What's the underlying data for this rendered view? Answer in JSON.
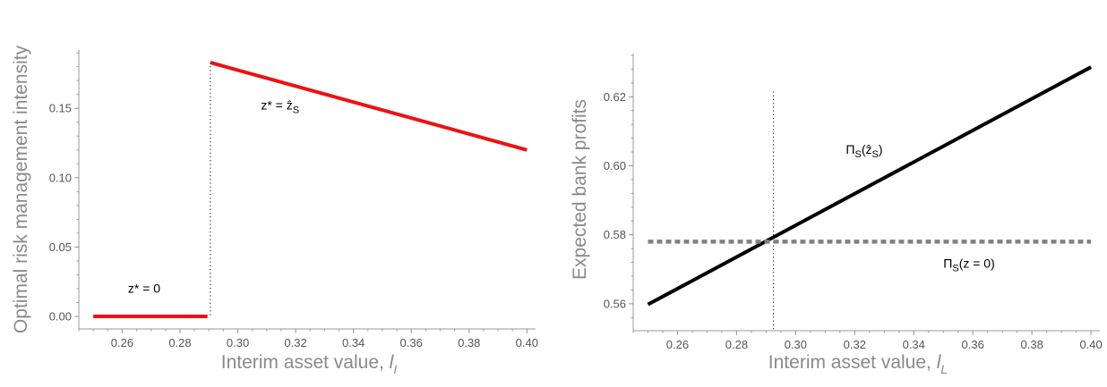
{
  "chart_data": [
    {
      "type": "line",
      "xlabel": "Interim asset value, ",
      "xlabel_var": "l",
      "xlabel_sub": "I",
      "ylabel": "Optimal risk management intensity",
      "xlim": [
        0.245,
        0.403
      ],
      "ylim": [
        -0.009,
        0.192
      ],
      "xticks": [
        0.26,
        0.28,
        0.3,
        0.32,
        0.34,
        0.36,
        0.38,
        0.4
      ],
      "xtick_labels": [
        "0.26",
        "0.28",
        "0.30",
        "0.32",
        "0.34",
        "0.36",
        "0.38",
        "0.40"
      ],
      "yticks": [
        0.0,
        0.05,
        0.1,
        0.15
      ],
      "ytick_labels": [
        "0.00",
        "0.05",
        "0.10",
        "0.15"
      ],
      "grid": false,
      "series": [
        {
          "color": "#ee1111",
          "style": "solid",
          "x": [
            0.25,
            0.2895
          ],
          "y": [
            0.0,
            0.0
          ]
        },
        {
          "color": "#ee1111",
          "style": "solid",
          "x": [
            0.2905,
            0.4
          ],
          "y": [
            0.183,
            0.12
          ]
        }
      ],
      "vlines": [
        {
          "x": 0.2905,
          "y0": 0.0,
          "y1": 0.183,
          "style": "dotted",
          "color": "#000000"
        }
      ],
      "annotations": [
        {
          "text_main": "z* = 0",
          "text_sub": "",
          "x": 0.262,
          "y": 0.017
        },
        {
          "text_main": "z* = ẑ",
          "text_sub": "S",
          "x": 0.308,
          "y": 0.149
        }
      ]
    },
    {
      "type": "line",
      "xlabel": "Interim asset value, ",
      "xlabel_var": "l",
      "xlabel_sub": "L",
      "ylabel": "Expected bank profits",
      "xlim": [
        0.245,
        0.403
      ],
      "ylim": [
        0.5522,
        0.6325
      ],
      "xticks": [
        0.26,
        0.28,
        0.3,
        0.32,
        0.34,
        0.36,
        0.38,
        0.4
      ],
      "xtick_labels": [
        "0.26",
        "0.28",
        "0.30",
        "0.32",
        "0.34",
        "0.36",
        "0.38",
        "0.40"
      ],
      "yticks": [
        0.56,
        0.58,
        0.6,
        0.62
      ],
      "ytick_labels": [
        "0.56",
        "0.58",
        "0.60",
        "0.62"
      ],
      "grid": false,
      "series": [
        {
          "color": "#000000",
          "style": "solid",
          "x": [
            0.25,
            0.4
          ],
          "y": [
            0.5598,
            0.6286
          ]
        },
        {
          "color": "#808080",
          "style": "dashed",
          "x": [
            0.25,
            0.4
          ],
          "y": [
            0.578,
            0.578
          ]
        }
      ],
      "vlines": [
        {
          "x": 0.2925,
          "y0": 0.5522,
          "y1": 0.6215,
          "style": "dotted",
          "color": "#000000"
        }
      ],
      "annotations": [
        {
          "text_main": "Π",
          "text_sub": "S",
          "text_rest": "(ẑ",
          "text_sub2": "S",
          "text_end": ")",
          "x": 0.317,
          "y": 0.6035
        },
        {
          "text_main": "Π",
          "text_sub": "S",
          "text_rest": "(z = 0)",
          "text_sub2": "",
          "text_end": "",
          "x": 0.35,
          "y": 0.5705
        }
      ]
    }
  ]
}
